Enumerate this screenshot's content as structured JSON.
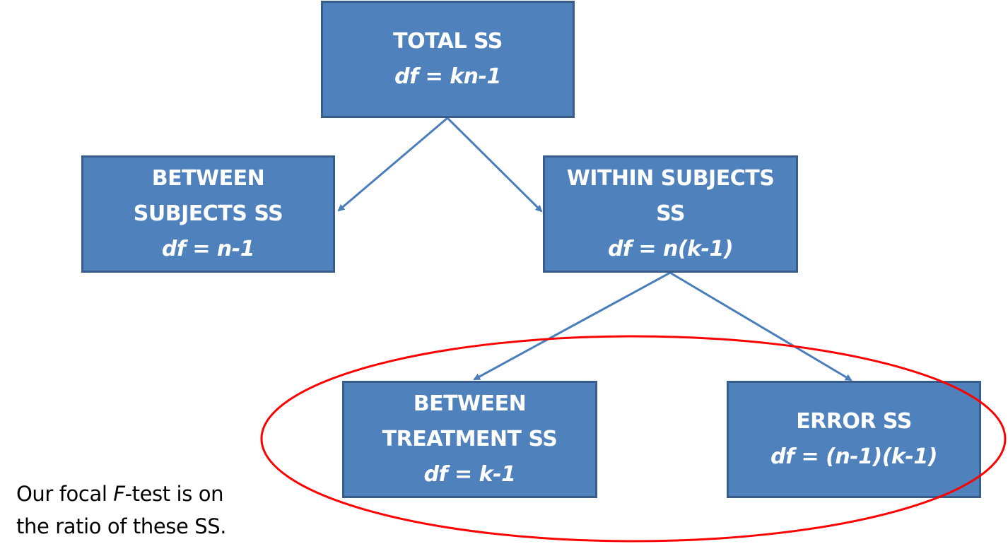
{
  "boxes": {
    "total": {
      "title_1": "TOTAL SS",
      "df": "df = kn-1"
    },
    "between_subjects": {
      "title_1": "BETWEEN",
      "title_2": "SUBJECTS SS",
      "df": "df = n-1"
    },
    "within_subjects": {
      "title_1": "WITHIN SUBJECTS",
      "title_2": "SS",
      "df": "df = n(k-1)"
    },
    "between_treatment": {
      "title_1": "BETWEEN",
      "title_2": "TREATMENT SS",
      "df": "df = k-1"
    },
    "error": {
      "title_1": "ERROR SS",
      "df": "df = (n-1)(k-1)"
    }
  },
  "note": {
    "line1_pre": "Our focal ",
    "line1_italic": "F",
    "line1_post": "-test is on",
    "line2": "the ratio of these SS."
  },
  "colors": {
    "box_fill": "#4f81bd",
    "box_border": "#385d8a",
    "arrow": "#4a7ebb",
    "highlight_ellipse": "#ff0000"
  }
}
